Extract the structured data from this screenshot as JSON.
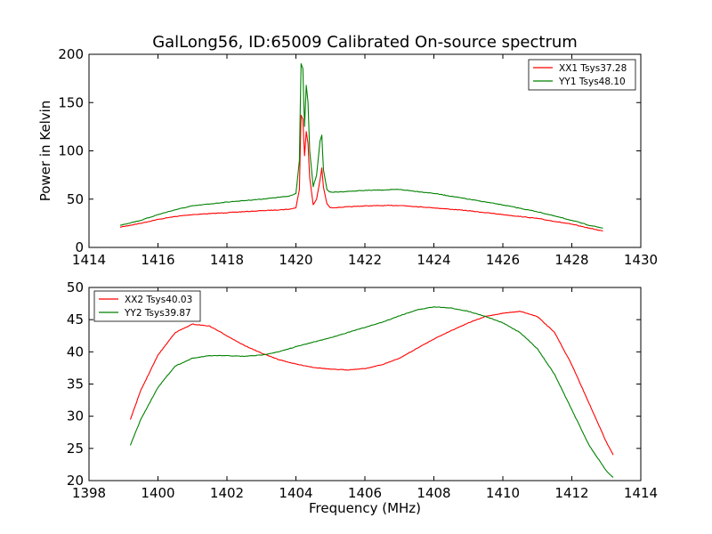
{
  "chart_data": [
    {
      "type": "line",
      "title": "GalLong56, ID:65009 Calibrated On-source spectrum",
      "ylabel": "Power in Kelvin",
      "xlabel": "",
      "xlim": [
        1414,
        1430
      ],
      "ylim": [
        0,
        200
      ],
      "xticks": [
        "1414",
        "1416",
        "1418",
        "1420",
        "1422",
        "1424",
        "1426",
        "1428",
        "1430"
      ],
      "yticks": [
        "0",
        "50",
        "100",
        "150",
        "200"
      ],
      "grid": false,
      "legend_position": "top-right",
      "series": [
        {
          "name": "XX1 Tsys37.28",
          "color": "#ff0000",
          "x": [
            1414.9,
            1415.5,
            1416.0,
            1416.5,
            1417.0,
            1418.0,
            1419.0,
            1419.8,
            1420.0,
            1420.1,
            1420.15,
            1420.2,
            1420.25,
            1420.3,
            1420.35,
            1420.4,
            1420.5,
            1420.6,
            1420.7,
            1420.75,
            1420.8,
            1420.9,
            1421.0,
            1422.0,
            1423.0,
            1424.0,
            1425.0,
            1426.0,
            1427.0,
            1428.0,
            1428.5,
            1428.9
          ],
          "y": [
            21,
            25,
            29,
            32,
            34,
            36,
            38,
            39.5,
            41,
            60,
            137,
            133,
            95,
            120,
            108,
            72,
            44,
            50,
            70,
            82,
            62,
            45,
            41,
            43,
            43.5,
            41,
            38,
            34,
            30,
            24,
            20,
            17
          ]
        },
        {
          "name": "YY1 Tsys48.10",
          "color": "#008000",
          "x": [
            1414.9,
            1415.5,
            1416.0,
            1416.5,
            1417.0,
            1418.0,
            1419.0,
            1419.8,
            1420.0,
            1420.1,
            1420.15,
            1420.2,
            1420.25,
            1420.3,
            1420.35,
            1420.4,
            1420.5,
            1420.6,
            1420.7,
            1420.75,
            1420.8,
            1420.9,
            1421.0,
            1422.0,
            1423.0,
            1424.0,
            1425.0,
            1426.0,
            1427.0,
            1428.0,
            1428.5,
            1428.9
          ],
          "y": [
            23,
            28,
            34,
            39,
            43,
            47,
            50,
            53,
            56,
            90,
            190,
            185,
            125,
            168,
            150,
            100,
            63,
            75,
            110,
            116,
            80,
            60,
            57,
            59,
            60,
            56,
            50,
            44,
            37,
            28,
            23,
            20
          ]
        }
      ]
    },
    {
      "type": "line",
      "title": "",
      "ylabel": "",
      "xlabel": "Frequency (MHz)",
      "xlim": [
        1398,
        1414
      ],
      "ylim": [
        20,
        50
      ],
      "xticks": [
        "1398",
        "1400",
        "1402",
        "1404",
        "1406",
        "1408",
        "1410",
        "1412",
        "1414"
      ],
      "yticks": [
        "20",
        "25",
        "30",
        "35",
        "40",
        "45",
        "50"
      ],
      "grid": false,
      "legend_position": "top-left",
      "series": [
        {
          "name": "XX2 Tsys40.03",
          "color": "#ff0000",
          "x": [
            1399.2,
            1399.5,
            1400.0,
            1400.5,
            1401.0,
            1401.5,
            1402.0,
            1402.5,
            1403.0,
            1403.5,
            1404.0,
            1404.5,
            1405.0,
            1405.5,
            1406.0,
            1406.5,
            1407.0,
            1407.5,
            1408.0,
            1408.5,
            1409.0,
            1409.5,
            1410.0,
            1410.5,
            1411.0,
            1411.5,
            1412.0,
            1412.5,
            1413.0,
            1413.2
          ],
          "y": [
            29.5,
            34,
            39.5,
            43,
            44.3,
            44,
            42.5,
            41,
            39.8,
            38.8,
            38.1,
            37.6,
            37.3,
            37.2,
            37.4,
            38.0,
            39.0,
            40.5,
            42.0,
            43.3,
            44.5,
            45.5,
            46.0,
            46.3,
            45.5,
            43.0,
            38.0,
            32.0,
            26.0,
            24.0
          ]
        },
        {
          "name": "YY2 Tsys39.87",
          "color": "#008000",
          "x": [
            1399.2,
            1399.5,
            1400.0,
            1400.5,
            1401.0,
            1401.5,
            1402.0,
            1402.5,
            1403.0,
            1403.5,
            1404.0,
            1404.5,
            1405.0,
            1405.5,
            1406.0,
            1406.5,
            1407.0,
            1407.5,
            1408.0,
            1408.5,
            1409.0,
            1409.5,
            1410.0,
            1410.5,
            1411.0,
            1411.5,
            1412.0,
            1412.5,
            1413.0,
            1413.2
          ],
          "y": [
            25.5,
            29.5,
            34.5,
            37.8,
            39.0,
            39.4,
            39.4,
            39.3,
            39.5,
            40.0,
            40.8,
            41.5,
            42.2,
            43.0,
            43.8,
            44.6,
            45.6,
            46.5,
            47.0,
            46.8,
            46.3,
            45.5,
            44.5,
            43.0,
            40.5,
            36.5,
            31.0,
            25.5,
            21.5,
            20.5
          ]
        }
      ]
    }
  ]
}
